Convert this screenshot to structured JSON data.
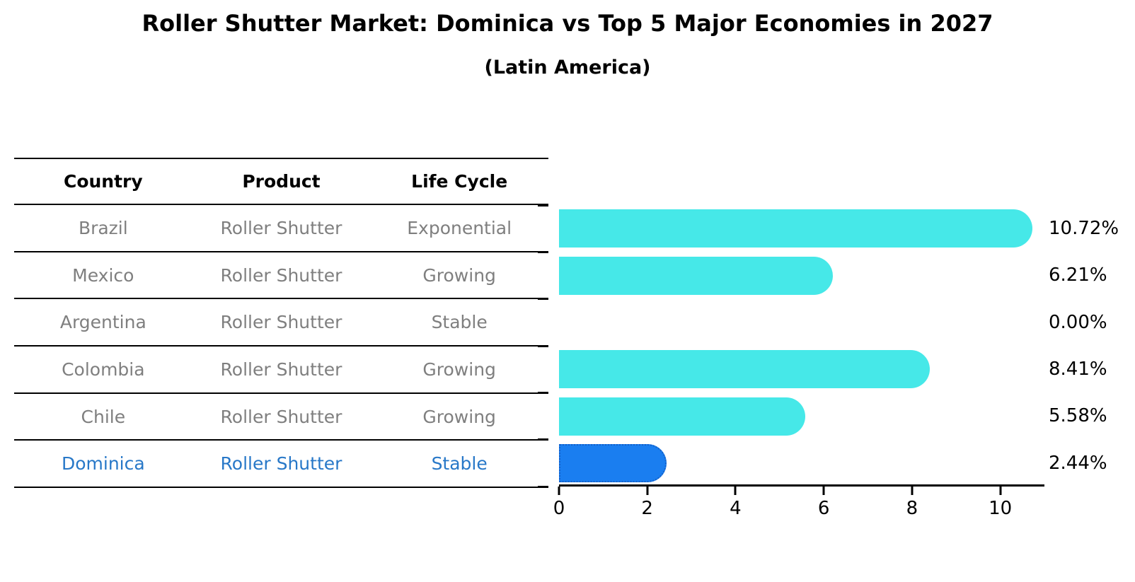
{
  "title": "Roller Shutter Market: Dominica vs Top 5 Major Economies in 2027",
  "subtitle": "(Latin America)",
  "table": {
    "headers": {
      "country": "Country",
      "product": "Product",
      "life_cycle": "Life Cycle"
    },
    "rows": [
      {
        "country": "Brazil",
        "product": "Roller Shutter",
        "life_cycle": "Exponential"
      },
      {
        "country": "Mexico",
        "product": "Roller Shutter",
        "life_cycle": "Growing"
      },
      {
        "country": "Argentina",
        "product": "Roller Shutter",
        "life_cycle": "Stable"
      },
      {
        "country": "Colombia",
        "product": "Roller Shutter",
        "life_cycle": "Growing"
      },
      {
        "country": "Chile",
        "product": "Roller Shutter",
        "life_cycle": "Growing"
      },
      {
        "country": "Dominica",
        "product": "Roller Shutter",
        "life_cycle": "Stable"
      }
    ],
    "highlight_row_index": 5
  },
  "chart_data": {
    "type": "bar",
    "orientation": "horizontal",
    "categories": [
      "Brazil",
      "Mexico",
      "Argentina",
      "Colombia",
      "Chile",
      "Dominica"
    ],
    "values": [
      10.72,
      6.21,
      0.0,
      8.41,
      5.58,
      2.44
    ],
    "value_labels": [
      "10.72%",
      "6.21%",
      "0.00%",
      "8.41%",
      "5.58%",
      "2.44%"
    ],
    "ylabel": "",
    "xlabel": "",
    "x_ticks": [
      0,
      2,
      4,
      6,
      8,
      10
    ],
    "xlim": [
      0,
      11
    ],
    "grid": false,
    "legend": false,
    "highlight_index": 5
  },
  "colors": {
    "bar_default": "#46e8e8",
    "bar_highlight": "#1a7ef0",
    "bar_highlight_border": "#1460c8",
    "table_text": "#7f7f7f",
    "highlight_text": "#2878c8",
    "axis": "#000000",
    "background": "#ffffff"
  }
}
